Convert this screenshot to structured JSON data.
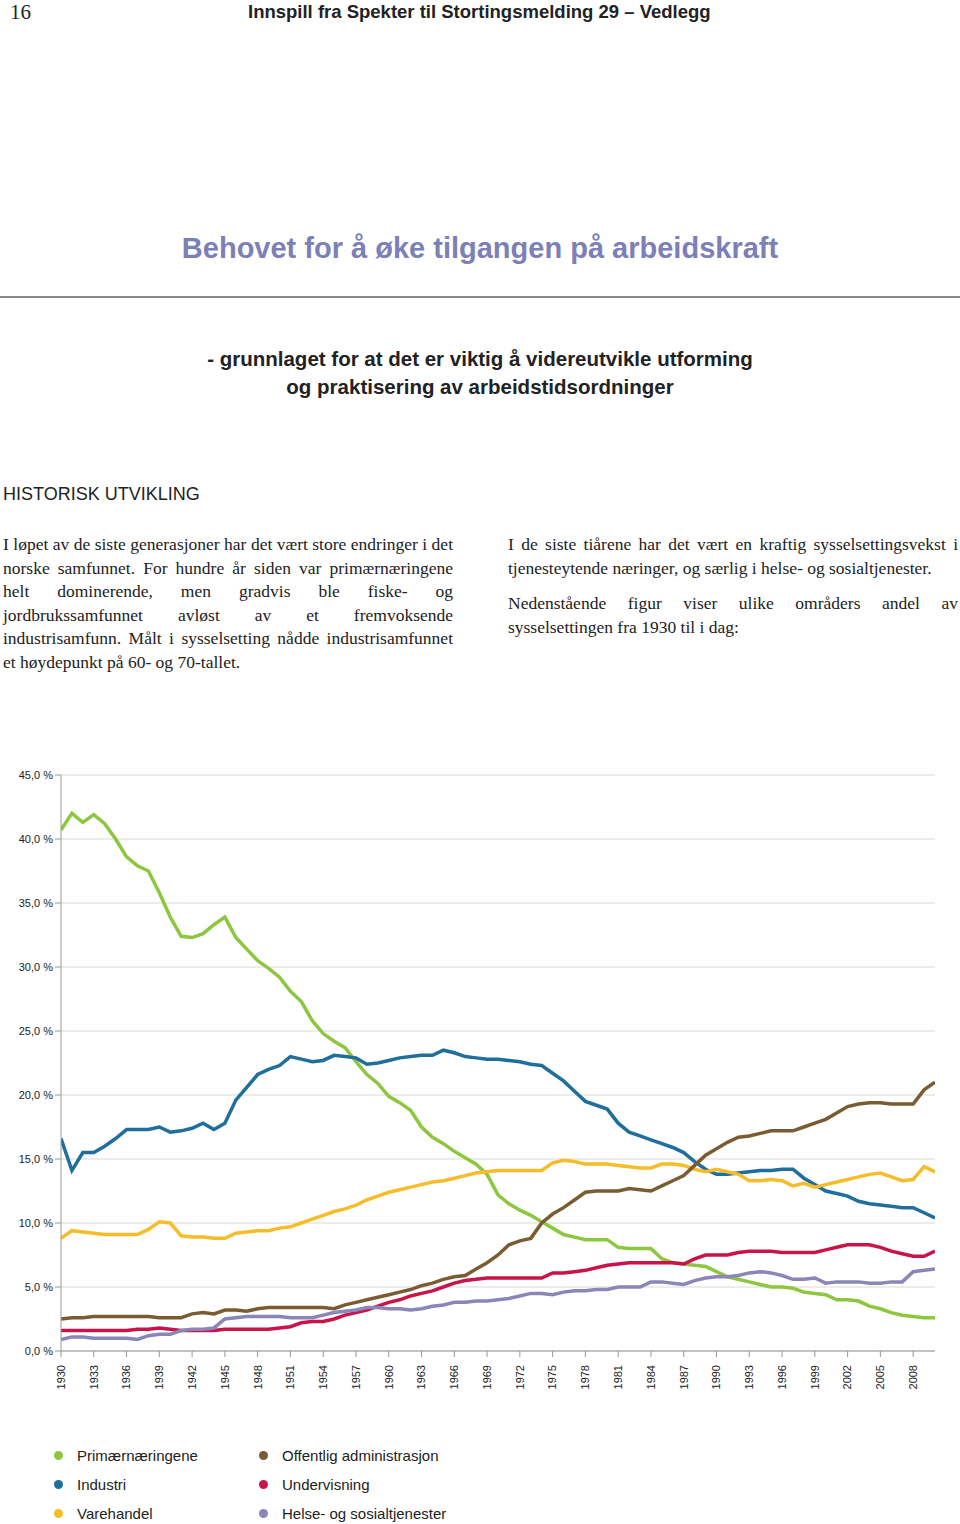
{
  "header": {
    "page": 16,
    "text": "Innspill fra Spekter til Stortingsmelding 29 – Vedlegg"
  },
  "title": "Behovet for å øke tilgangen på arbeidskraft",
  "subtitle": [
    "- grunnlaget for at det er viktig å videreutvikle utforming",
    "og praktisering av arbeidstidsordninger"
  ],
  "section": {
    "heading": "HISTORISK UTVIKLING",
    "left": [
      "I løpet av de siste generasjoner har det vært store endringer i det norske samfunnet. For hundre år siden var primærnæringene helt dominerende, men gradvis ble fiske- og jordbrukssamfunnet avløst av et fremvoksende industrisamfunn. Målt i sysselsetting nådde industrisamfunnet et høydepunkt på 60- og 70-tallet."
    ],
    "right": [
      "I de siste tiårene har det vært en kraftig sysselsettingsvekst i tjenesteytende næringer, og særlig i helse- og sosialtjenester.",
      "Nedenstående figur viser ulike områders andel av sysselsettingen fra 1930 til i dag:"
    ]
  },
  "chart_data": {
    "type": "line",
    "x": [
      1930,
      1931,
      1932,
      1933,
      1934,
      1935,
      1936,
      1937,
      1938,
      1939,
      1940,
      1941,
      1942,
      1943,
      1944,
      1945,
      1946,
      1947,
      1948,
      1949,
      1950,
      1951,
      1952,
      1953,
      1954,
      1955,
      1956,
      1957,
      1958,
      1959,
      1960,
      1961,
      1962,
      1963,
      1964,
      1965,
      1966,
      1967,
      1968,
      1969,
      1970,
      1971,
      1972,
      1973,
      1974,
      1975,
      1976,
      1977,
      1978,
      1979,
      1980,
      1981,
      1982,
      1983,
      1984,
      1985,
      1986,
      1987,
      1988,
      1989,
      1990,
      1991,
      1992,
      1993,
      1994,
      1995,
      1996,
      1997,
      1998,
      1999,
      2000,
      2001,
      2002,
      2003,
      2004,
      2005,
      2006,
      2007,
      2008,
      2009,
      2010
    ],
    "xlim": [
      1930,
      2010
    ],
    "xticks": [
      1930,
      1933,
      1936,
      1939,
      1942,
      1945,
      1948,
      1951,
      1954,
      1957,
      1960,
      1963,
      1966,
      1969,
      1972,
      1975,
      1978,
      1981,
      1984,
      1987,
      1990,
      1993,
      1996,
      1999,
      2002,
      2005,
      2008
    ],
    "ylim": [
      0,
      45
    ],
    "yticks": [
      {
        "value": 0,
        "label": "0,0 %"
      },
      {
        "value": 5,
        "label": "5,0 %"
      },
      {
        "value": 10,
        "label": "10,0 %"
      },
      {
        "value": 15,
        "label": "15,0 %"
      },
      {
        "value": 20,
        "label": "20,0 %"
      },
      {
        "value": 25,
        "label": "25,0 %"
      },
      {
        "value": 30,
        "label": "30,0 %"
      },
      {
        "value": 35,
        "label": "35,0 %"
      },
      {
        "value": 40,
        "label": "40,0 %"
      },
      {
        "value": 45,
        "label": "45,0 %"
      }
    ],
    "grid": true,
    "legend": "bottom",
    "series": [
      {
        "name": "Primærnæringene",
        "color": "#8dc63f",
        "values": [
          40.7,
          42.0,
          41.3,
          41.9,
          41.2,
          40.0,
          38.6,
          37.9,
          37.5,
          35.8,
          33.9,
          32.4,
          32.3,
          32.6,
          33.3,
          33.9,
          32.3,
          31.4,
          30.5,
          29.9,
          29.2,
          28.1,
          27.3,
          25.8,
          24.8,
          24.2,
          23.7,
          22.6,
          21.6,
          20.9,
          19.9,
          19.4,
          18.8,
          17.5,
          16.7,
          16.2,
          15.6,
          15.1,
          14.6,
          13.8,
          12.2,
          11.5,
          11.0,
          10.6,
          10.1,
          9.6,
          9.1,
          8.9,
          8.7,
          8.7,
          8.7,
          8.1,
          8.0,
          8.0,
          8.0,
          7.2,
          6.9,
          6.8,
          6.7,
          6.6,
          6.2,
          5.8,
          5.6,
          5.4,
          5.2,
          5.0,
          5.0,
          4.9,
          4.6,
          4.5,
          4.4,
          4.0,
          4.0,
          3.9,
          3.5,
          3.3,
          3.0,
          2.8,
          2.7,
          2.6,
          2.6
        ]
      },
      {
        "name": "Industri",
        "color": "#1f6e9c",
        "values": [
          16.6,
          14.1,
          15.5,
          15.5,
          16.0,
          16.6,
          17.3,
          17.3,
          17.3,
          17.5,
          17.1,
          17.2,
          17.4,
          17.8,
          17.3,
          17.8,
          19.6,
          20.6,
          21.6,
          22.0,
          22.3,
          23.0,
          22.8,
          22.6,
          22.7,
          23.1,
          23.0,
          22.9,
          22.4,
          22.5,
          22.7,
          22.9,
          23.0,
          23.1,
          23.1,
          23.5,
          23.3,
          23.0,
          22.9,
          22.8,
          22.8,
          22.7,
          22.6,
          22.4,
          22.3,
          21.7,
          21.1,
          20.3,
          19.5,
          19.2,
          18.9,
          17.8,
          17.1,
          16.8,
          16.5,
          16.2,
          15.9,
          15.5,
          14.8,
          14.2,
          13.8,
          13.8,
          13.9,
          14.0,
          14.1,
          14.1,
          14.2,
          14.2,
          13.5,
          13.0,
          12.5,
          12.3,
          12.1,
          11.7,
          11.5,
          11.4,
          11.3,
          11.2,
          11.2,
          10.8,
          10.4
        ]
      },
      {
        "name": "Varehandel",
        "color": "#f5bd2a",
        "values": [
          8.8,
          9.4,
          9.3,
          9.2,
          9.1,
          9.1,
          9.1,
          9.1,
          9.5,
          10.1,
          10.0,
          9.0,
          8.9,
          8.9,
          8.8,
          8.8,
          9.2,
          9.3,
          9.4,
          9.4,
          9.6,
          9.7,
          10.0,
          10.3,
          10.6,
          10.9,
          11.1,
          11.4,
          11.8,
          12.1,
          12.4,
          12.6,
          12.8,
          13.0,
          13.2,
          13.3,
          13.5,
          13.7,
          13.9,
          14.0,
          14.1,
          14.1,
          14.1,
          14.1,
          14.1,
          14.7,
          14.9,
          14.8,
          14.6,
          14.6,
          14.6,
          14.5,
          14.4,
          14.3,
          14.3,
          14.6,
          14.6,
          14.5,
          14.2,
          14.0,
          14.2,
          14.0,
          13.8,
          13.3,
          13.3,
          13.4,
          13.3,
          12.9,
          13.1,
          12.8,
          13.0,
          13.2,
          13.4,
          13.6,
          13.8,
          13.9,
          13.6,
          13.3,
          13.4,
          14.4,
          14.0
        ]
      },
      {
        "name": "Offentlig administrasjon",
        "color": "#7a5c32",
        "values": [
          2.5,
          2.6,
          2.6,
          2.7,
          2.7,
          2.7,
          2.7,
          2.7,
          2.7,
          2.6,
          2.6,
          2.6,
          2.9,
          3.0,
          2.9,
          3.2,
          3.2,
          3.1,
          3.3,
          3.4,
          3.4,
          3.4,
          3.4,
          3.4,
          3.4,
          3.3,
          3.6,
          3.8,
          4.0,
          4.2,
          4.4,
          4.6,
          4.8,
          5.1,
          5.3,
          5.6,
          5.8,
          5.9,
          6.4,
          6.9,
          7.5,
          8.3,
          8.6,
          8.8,
          10.0,
          10.7,
          11.2,
          11.8,
          12.4,
          12.5,
          12.5,
          12.5,
          12.7,
          12.6,
          12.5,
          12.9,
          13.3,
          13.7,
          14.5,
          15.3,
          15.8,
          16.3,
          16.7,
          16.8,
          17.0,
          17.2,
          17.2,
          17.2,
          17.5,
          17.8,
          18.1,
          18.6,
          19.1,
          19.3,
          19.4,
          19.4,
          19.3,
          19.3,
          19.3,
          20.4,
          21.0
        ]
      },
      {
        "name": "Undervisning",
        "color": "#c8144b",
        "values": [
          1.6,
          1.6,
          1.6,
          1.6,
          1.6,
          1.6,
          1.6,
          1.7,
          1.7,
          1.8,
          1.7,
          1.6,
          1.6,
          1.6,
          1.6,
          1.7,
          1.7,
          1.7,
          1.7,
          1.7,
          1.8,
          1.9,
          2.2,
          2.3,
          2.3,
          2.5,
          2.8,
          3.0,
          3.2,
          3.5,
          3.8,
          4.0,
          4.3,
          4.5,
          4.7,
          5.0,
          5.3,
          5.5,
          5.6,
          5.7,
          5.7,
          5.7,
          5.7,
          5.7,
          5.7,
          6.1,
          6.1,
          6.2,
          6.3,
          6.5,
          6.7,
          6.8,
          6.9,
          6.9,
          6.9,
          6.9,
          6.9,
          6.8,
          7.2,
          7.5,
          7.5,
          7.5,
          7.7,
          7.8,
          7.8,
          7.8,
          7.7,
          7.7,
          7.7,
          7.7,
          7.9,
          8.1,
          8.3,
          8.3,
          8.3,
          8.1,
          7.8,
          7.6,
          7.4,
          7.4,
          7.8
        ]
      },
      {
        "name": "Helse- og sosialtjenester",
        "color": "#8a86b8",
        "values": [
          0.9,
          1.1,
          1.1,
          1.0,
          1.0,
          1.0,
          1.0,
          0.9,
          1.2,
          1.3,
          1.3,
          1.6,
          1.7,
          1.7,
          1.8,
          2.5,
          2.6,
          2.7,
          2.7,
          2.7,
          2.7,
          2.6,
          2.6,
          2.6,
          2.8,
          3.0,
          3.1,
          3.2,
          3.4,
          3.4,
          3.3,
          3.3,
          3.2,
          3.3,
          3.5,
          3.6,
          3.8,
          3.8,
          3.9,
          3.9,
          4.0,
          4.1,
          4.3,
          4.5,
          4.5,
          4.4,
          4.6,
          4.7,
          4.7,
          4.8,
          4.8,
          5.0,
          5.0,
          5.0,
          5.4,
          5.4,
          5.3,
          5.2,
          5.5,
          5.7,
          5.8,
          5.8,
          5.9,
          6.1,
          6.2,
          6.1,
          5.9,
          5.6,
          5.6,
          5.7,
          5.3,
          5.4,
          5.4,
          5.4,
          5.3,
          5.3,
          5.4,
          5.4,
          6.2,
          6.3,
          6.4
        ]
      }
    ]
  }
}
